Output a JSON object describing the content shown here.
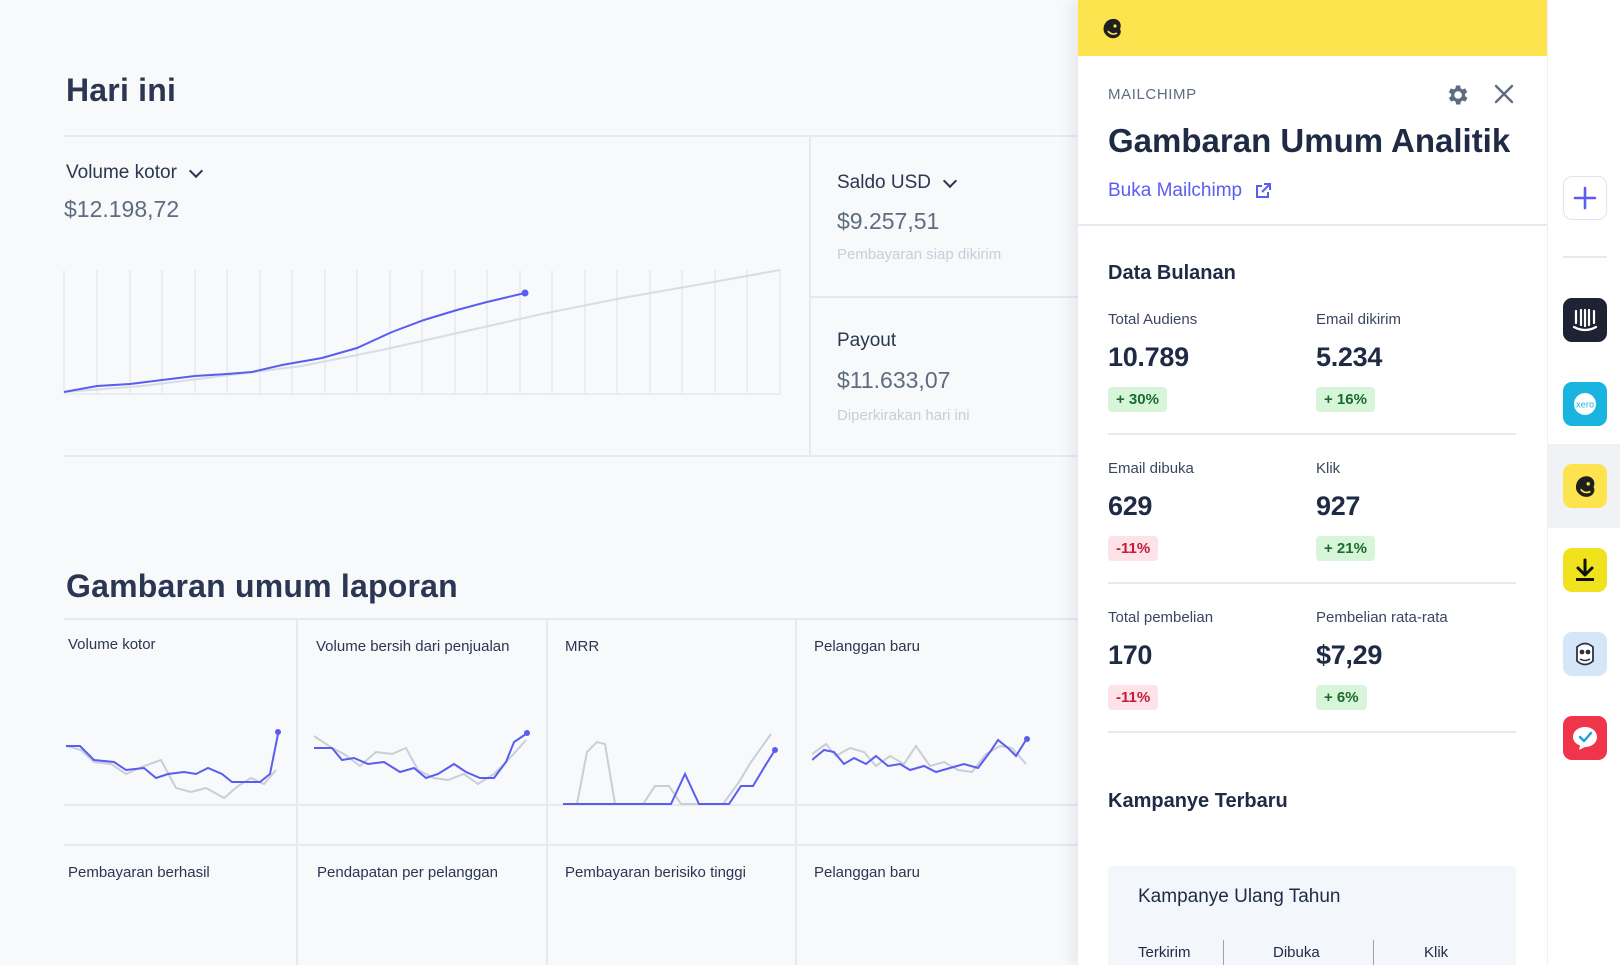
{
  "today": {
    "title": "Hari ini",
    "gross_volume_label": "Volume kotor",
    "gross_volume_value": "$12.198,72",
    "usd_balance_label": "Saldo USD",
    "usd_balance_value": "$9.257,51",
    "usd_balance_note": "Pembayaran siap dikirim",
    "payout_label": "Payout",
    "payout_value": "$11.633,07",
    "payout_note": "Diperkirakan hari ini"
  },
  "reports": {
    "title": "Gambaran umum laporan",
    "cells_row1": [
      "Volume kotor",
      "Volume bersih dari penjualan",
      "MRR",
      "Pelanggan baru"
    ],
    "cells_row2": [
      "Pembayaran berhasil",
      "Pendapatan per pelanggan",
      "Pembayaran berisiko tinggi",
      "Pelanggan baru"
    ]
  },
  "panel": {
    "kicker": "MAILCHIMP",
    "title": "Gambaran Umum Analitik",
    "link": "Buka Mailchimp",
    "monthly_title": "Data Bulanan",
    "metrics": [
      {
        "label": "Total Audiens",
        "value": "10.789",
        "change": "+ 30%",
        "trend": "up"
      },
      {
        "label": "Email dikirim",
        "value": "5.234",
        "change": "+ 16%",
        "trend": "up"
      },
      {
        "label": "Email dibuka",
        "value": "629",
        "change": "-11%",
        "trend": "down"
      },
      {
        "label": "Klik",
        "value": "927",
        "change": "+ 21%",
        "trend": "up"
      },
      {
        "label": "Total pembelian",
        "value": "170",
        "change": "-11%",
        "trend": "down"
      },
      {
        "label": "Pembelian rata-rata",
        "value": "$7,29",
        "change": "+ 6%",
        "trend": "up"
      }
    ],
    "campaigns_title": "Kampanye Terbaru",
    "campaign": {
      "name": "Kampanye Ulang Tahun",
      "col1": "Terkirim",
      "col2": "Dibuka",
      "col3": "Klik"
    }
  },
  "colors": {
    "accent": "#5b5cf0",
    "mailchimp_yellow": "#fde44e",
    "compare_line": "#d8dce4"
  },
  "rail_apps": [
    "add-icon",
    "intercom-icon",
    "xero-icon",
    "mailchimp-icon",
    "download-app-icon",
    "owl-app-icon",
    "checkmark-chat-icon"
  ]
}
